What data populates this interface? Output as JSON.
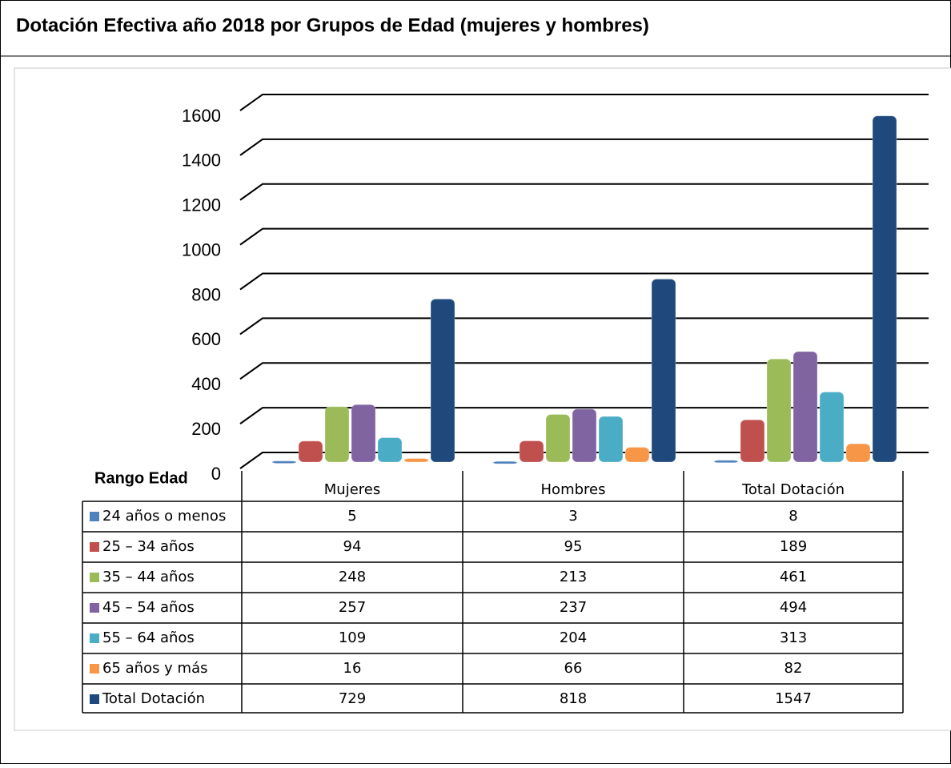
{
  "chart_data": {
    "type": "bar3d",
    "title": "Dotación Efectiva año 2018 por Grupos de Edad (mujeres y hombres)",
    "table_header": "Rango Edad",
    "categories": [
      "Mujeres",
      "Hombres",
      "Total Dotación"
    ],
    "series": [
      {
        "name": "24 años o menos",
        "color": "#4f81bd",
        "values": [
          5,
          3,
          8
        ]
      },
      {
        "name": "25 – 34 años",
        "color": "#c0504d",
        "values": [
          94,
          95,
          189
        ]
      },
      {
        "name": "35 – 44 años",
        "color": "#9bbb59",
        "values": [
          248,
          213,
          461
        ]
      },
      {
        "name": "45 – 54 años",
        "color": "#8064a2",
        "values": [
          257,
          237,
          494
        ]
      },
      {
        "name": "55 – 64 años",
        "color": "#4bacc6",
        "values": [
          109,
          204,
          313
        ]
      },
      {
        "name": "65 años y más",
        "color": "#f79646",
        "values": [
          16,
          66,
          82
        ]
      },
      {
        "name": "Total Dotación",
        "color": "#1f497d",
        "values": [
          729,
          818,
          1547
        ]
      }
    ],
    "ylim": [
      0,
      1600
    ],
    "yticks": [
      0,
      200,
      400,
      600,
      800,
      1000,
      1200,
      1400,
      1600
    ],
    "grid": true
  }
}
